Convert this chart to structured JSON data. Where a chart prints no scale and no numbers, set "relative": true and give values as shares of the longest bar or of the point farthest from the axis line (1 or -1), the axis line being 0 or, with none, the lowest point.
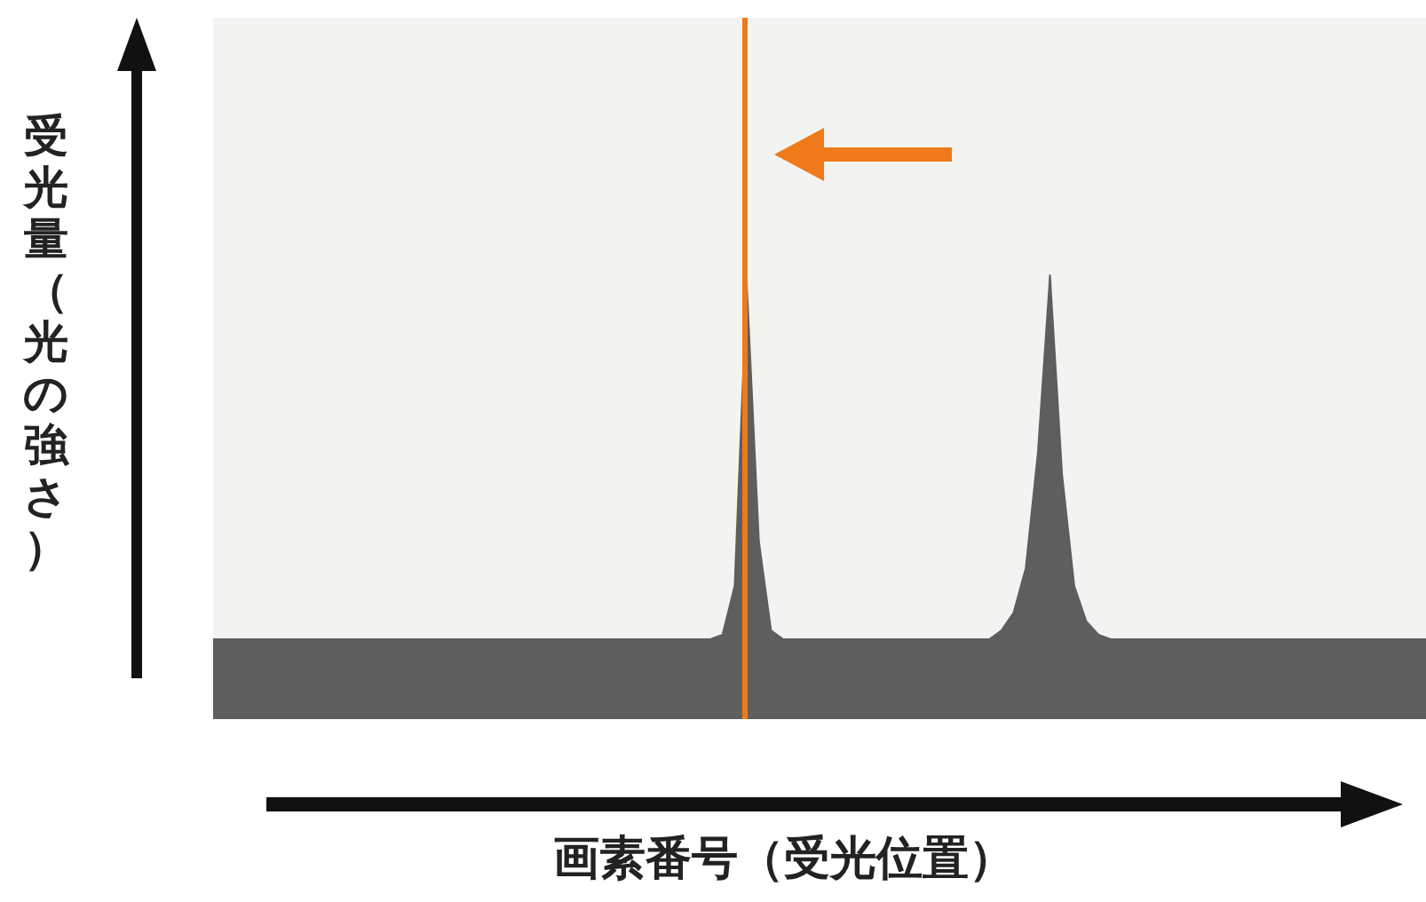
{
  "chart_data": {
    "type": "area",
    "relative": true,
    "xlabel": "画素番号（受光位置）",
    "ylabel": "受光量（光の強さ）",
    "categories": [
      null,
      null,
      null,
      null,
      null,
      null,
      null,
      null,
      null,
      null,
      null,
      null,
      null,
      null,
      null,
      null,
      null,
      null,
      null,
      null,
      null,
      null,
      null,
      null,
      null,
      null,
      null,
      null,
      null,
      null,
      null,
      null,
      null,
      null,
      null,
      null,
      null,
      null,
      null,
      null,
      null,
      null,
      null,
      null,
      null,
      null,
      null,
      null,
      null,
      null,
      null,
      null,
      null,
      null,
      null,
      null,
      null,
      null,
      null,
      null,
      null,
      null,
      null,
      null,
      null,
      null,
      null,
      null,
      null,
      null,
      null,
      null,
      null,
      null,
      null,
      null,
      null,
      null,
      null,
      null,
      null,
      null,
      null,
      null,
      null,
      null,
      null,
      null,
      null,
      null,
      null,
      null,
      null,
      null,
      null,
      null,
      null,
      null,
      null,
      null,
      null
    ],
    "series": [
      {
        "color": "#5e5e5e",
        "values": [
          0.18,
          0.18,
          0.18,
          0.18,
          0.18,
          0.18,
          0.18,
          0.18,
          0.18,
          0.18,
          0.18,
          0.18,
          0.18,
          0.18,
          0.18,
          0.18,
          0.18,
          0.18,
          0.18,
          0.18,
          0.18,
          0.18,
          0.18,
          0.18,
          0.18,
          0.18,
          0.18,
          0.18,
          0.18,
          0.18,
          0.18,
          0.18,
          0.18,
          0.18,
          0.18,
          0.18,
          0.18,
          0.18,
          0.18,
          0.18,
          0.18,
          0.18,
          0.19,
          0.3,
          0.98,
          0.4,
          0.2,
          0.18,
          0.18,
          0.18,
          0.18,
          0.18,
          0.18,
          0.18,
          0.18,
          0.18,
          0.18,
          0.18,
          0.18,
          0.18,
          0.18,
          0.18,
          0.18,
          0.18,
          0.18,
          0.2,
          0.24,
          0.34,
          0.6,
          1,
          0.55,
          0.3,
          0.22,
          0.19,
          0.18,
          0.18,
          0.18,
          0.18,
          0.18,
          0.18,
          0.18,
          0.18,
          0.18,
          0.18,
          0.18,
          0.18,
          0.18,
          0.18,
          0.18,
          0.18,
          0.18,
          0.18,
          0.18,
          0.18,
          0.18,
          0.18,
          0.18,
          0.18,
          0.18,
          0.18,
          0.18
        ]
      }
    ],
    "tick_labels": false
  }
}
